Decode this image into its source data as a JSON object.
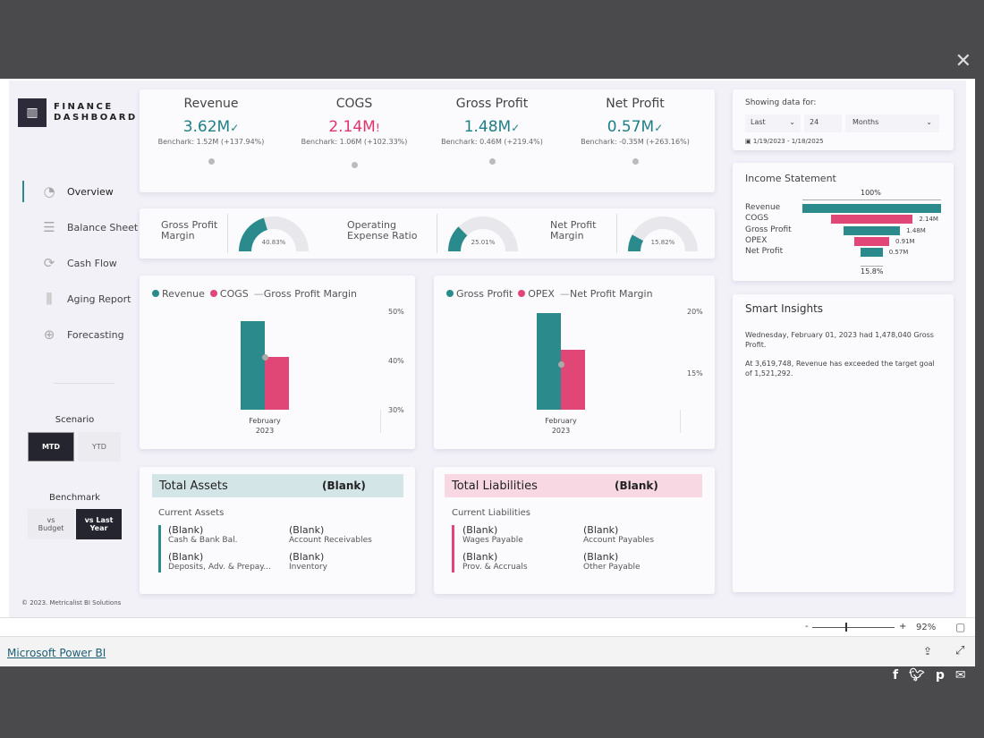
{
  "logo": {
    "line1": "FINANCE",
    "line2": "DASHBOARD"
  },
  "nav": [
    {
      "label": "Overview",
      "icon": "pie-chart-icon"
    },
    {
      "label": "Balance Sheet",
      "icon": "lines-icon"
    },
    {
      "label": "Cash Flow",
      "icon": "refresh-icon"
    },
    {
      "label": "Aging Report",
      "icon": "bar-chart-icon"
    },
    {
      "label": "Forecasting",
      "icon": "crosshair-icon"
    }
  ],
  "scenario": {
    "title": "Scenario",
    "options": [
      "MTD",
      "YTD"
    ],
    "selected": "MTD"
  },
  "benchmark": {
    "title": "Benchmark",
    "options": [
      "vs Budget",
      "vs Last Year"
    ],
    "selected": "vs Last Year"
  },
  "copyright": "© 2023. Metricalist BI Solutions",
  "kpis": [
    {
      "title": "Revenue",
      "value": "3.62M",
      "mark": "✓",
      "benchmark": "Benchark: 1.52M (+137.94%)",
      "color": "#1f7f86"
    },
    {
      "title": "COGS",
      "value": "2.14M",
      "mark": "!",
      "benchmark": "Benchark: 1.06M (+102.33%)",
      "color": "#e0336b"
    },
    {
      "title": "Gross Profit",
      "value": "1.48M",
      "mark": "✓",
      "benchmark": "Benchark: 0.46M (+219.4%)",
      "color": "#1f7f86"
    },
    {
      "title": "Net Profit",
      "value": "0.57M",
      "mark": "✓",
      "benchmark": "Benchark: -0.35M (+263.16%)",
      "color": "#1f7f86"
    }
  ],
  "gauges": [
    {
      "label1": "Gross Profit",
      "label2": "Margin",
      "value": 40.83,
      "text": "40.83%"
    },
    {
      "label1": "Operating",
      "label2": "Expense Ratio",
      "value": 25.01,
      "text": "25.01%"
    },
    {
      "label1": "Net Profit",
      "label2": "Margin",
      "value": 15.82,
      "text": "15.82%"
    }
  ],
  "colors": {
    "teal": "#2a8a8c",
    "pink": "#e04777",
    "gauge_bg": "#e8e8ec"
  },
  "chart_data": [
    {
      "type": "bar",
      "categories": [
        "February 2023"
      ],
      "category_lines": [
        "February",
        "2023"
      ],
      "series": [
        {
          "name": "Revenue",
          "values": [
            3.62
          ]
        },
        {
          "name": "COGS",
          "values": [
            2.14
          ]
        }
      ],
      "line_series": {
        "name": "Gross Profit Margin",
        "values": [
          40.83
        ]
      },
      "y2_ticks": [
        "50%",
        "40%",
        "30%"
      ],
      "y2lim": [
        30,
        50
      ],
      "ylim": [
        0,
        3.98
      ]
    },
    {
      "type": "bar",
      "categories": [
        "February 2023"
      ],
      "category_lines": [
        "February",
        "2023"
      ],
      "series": [
        {
          "name": "Gross Profit",
          "values": [
            1.48
          ]
        },
        {
          "name": "OPEX",
          "values": [
            0.91
          ]
        }
      ],
      "line_series": {
        "name": "Net Profit Margin",
        "values": [
          15.82
        ]
      },
      "y2_ticks": [
        "20%",
        "15%"
      ],
      "y2lim": [
        10,
        20
      ],
      "ylim": [
        0,
        1.6
      ]
    }
  ],
  "filter": {
    "title": "Showing data for:",
    "period": "Last",
    "count": "24",
    "unit": "Months",
    "range": "1/19/2023 - 1/18/2025"
  },
  "income": {
    "title": "Income Statement",
    "top": "100%",
    "bottom": "15.8%",
    "rows": [
      {
        "label": "Revenue",
        "value": 3.62,
        "text": "",
        "color": "teal"
      },
      {
        "label": "COGS",
        "value": 2.14,
        "text": "2.14M",
        "color": "pink"
      },
      {
        "label": "Gross Profit",
        "value": 1.48,
        "text": "1.48M",
        "color": "teal"
      },
      {
        "label": "OPEX",
        "value": 0.91,
        "text": "0.91M",
        "color": "pink"
      },
      {
        "label": "Net Profit",
        "value": 0.57,
        "text": "0.57M",
        "color": "teal"
      }
    ]
  },
  "insights": {
    "title": "Smart Insights",
    "p1": "Wednesday, February 01, 2023 had 1,478,040 Gross Profit.",
    "p2": "At 3,619,748, Revenue has exceeded the target goal of 1,521,292."
  },
  "assets": {
    "title": "Total Assets",
    "value": "(Blank)",
    "sub": "Current Assets",
    "items": [
      {
        "v": "(Blank)",
        "l": "Cash & Bank Bal."
      },
      {
        "v": "(Blank)",
        "l": "Account Receivables"
      },
      {
        "v": "(Blank)",
        "l": "Deposits, Adv. & Prepay..."
      },
      {
        "v": "(Blank)",
        "l": "Inventory"
      }
    ]
  },
  "liabilities": {
    "title": "Total Liabilities",
    "value": "(Blank)",
    "sub": "Current Liabilities",
    "items": [
      {
        "v": "(Blank)",
        "l": "Wages Payable"
      },
      {
        "v": "(Blank)",
        "l": "Account Payables"
      },
      {
        "v": "(Blank)",
        "l": "Prov. & Accruals"
      },
      {
        "v": "(Blank)",
        "l": "Other Payable"
      }
    ]
  },
  "zoom": {
    "minus": "-",
    "plus": "+",
    "level": "92%",
    "fraction": 0.4
  },
  "footer": {
    "link": "Microsoft Power BI"
  }
}
